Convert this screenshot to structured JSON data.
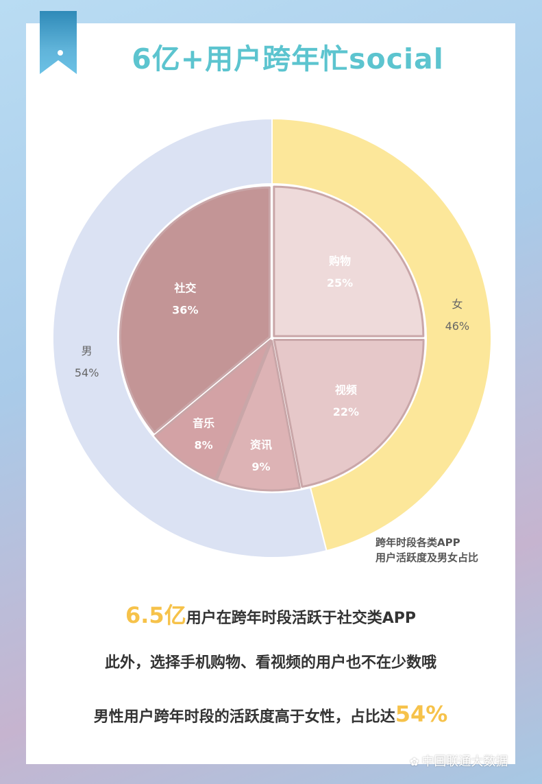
{
  "title": "6亿+用户跨年忙social",
  "chart_data": {
    "type": "pie",
    "title": "跨年时段各类APP用户活跃度及男女占比",
    "caption_lines": [
      "跨年时段各类APP",
      "用户活跃度及男女占比"
    ],
    "outer_ring": {
      "series": "gender",
      "slices": [
        {
          "label": "女",
          "value": 46,
          "value_label": "46%",
          "color": "#fce79a"
        },
        {
          "label": "男",
          "value": 54,
          "value_label": "54%",
          "color": "#dbe2f3"
        }
      ]
    },
    "inner_pie": {
      "series": "app_category",
      "slices": [
        {
          "label": "购物",
          "value": 25,
          "value_label": "25%",
          "color": "#eedada"
        },
        {
          "label": "视频",
          "value": 22,
          "value_label": "22%",
          "color": "#e6c8c9"
        },
        {
          "label": "资讯",
          "value": 9,
          "value_label": "9%",
          "color": "#ddb3b5"
        },
        {
          "label": "音乐",
          "value": 8,
          "value_label": "8%",
          "color": "#d3a2a5"
        },
        {
          "label": "社交",
          "value": 36,
          "value_label": "36%",
          "color": "#c39596"
        }
      ]
    }
  },
  "text": {
    "line1_highlight": "6.5亿",
    "line1_rest": "用户在跨年时段活跃于社交类APP",
    "line2": "此外，选择手机购物、看视频的用户也不在少数哦",
    "line3_prefix": "男性用户跨年时段的活跃度高于女性，占比达",
    "line3_highlight": "54%"
  },
  "watermark": {
    "icon": "wechat-icon",
    "text": "中国联通大数据"
  }
}
